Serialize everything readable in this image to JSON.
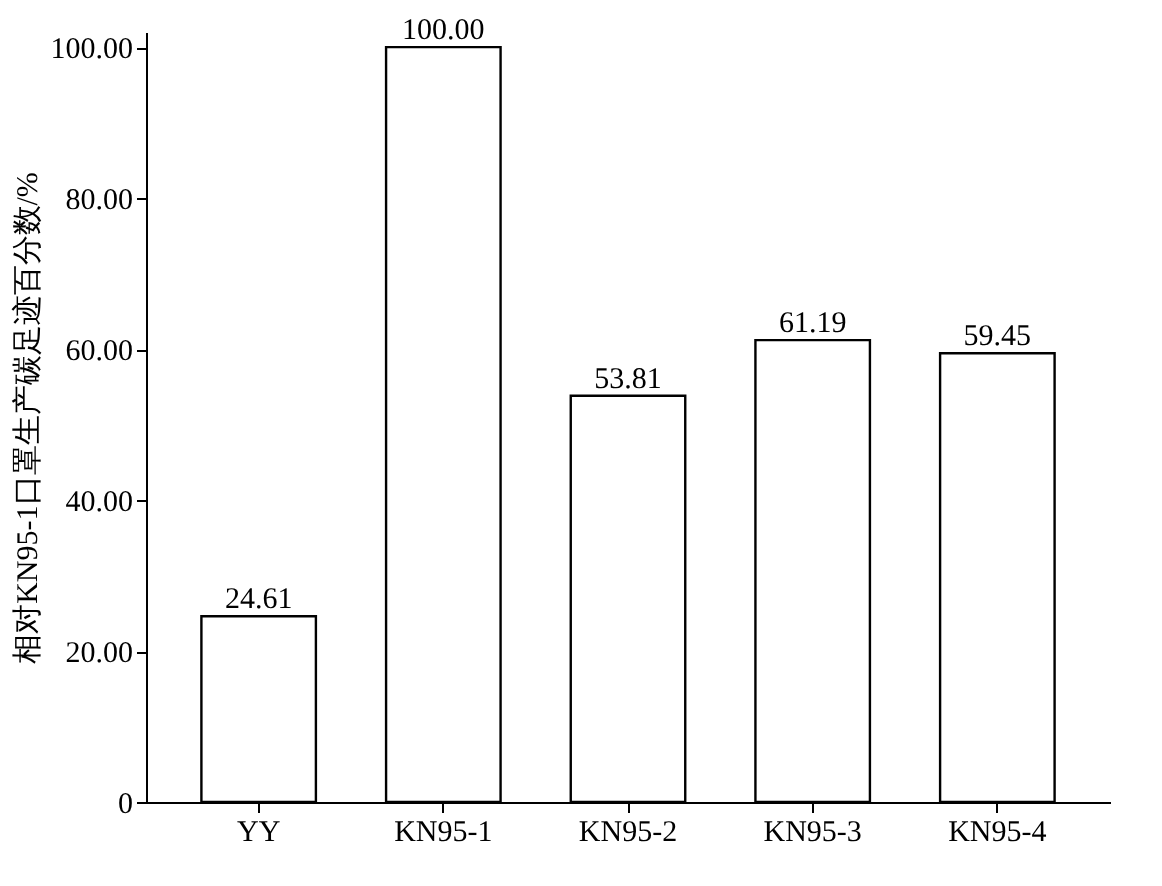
{
  "chart_data": {
    "type": "bar",
    "ylabel": "相对KN95-1口罩生产碳足迹百分数/%",
    "categories": [
      "YY",
      "KN95-1",
      "KN95-2",
      "KN95-3",
      "KN95-4"
    ],
    "values": [
      24.61,
      100.0,
      53.81,
      61.19,
      59.45
    ],
    "value_labels": [
      "24.61",
      "100.00",
      "53.81",
      "61.19",
      "59.45"
    ],
    "color": "#ffffff",
    "ylim": [
      0,
      102
    ],
    "yticks": [
      0,
      {
        "value": 20,
        "label": "20.00"
      },
      {
        "value": 40,
        "label": "40.00"
      },
      {
        "value": 60,
        "label": "60.00"
      },
      {
        "value": 80,
        "label": "80.00"
      },
      {
        "value": 100,
        "label": "100.00"
      }
    ],
    "grid": false
  }
}
